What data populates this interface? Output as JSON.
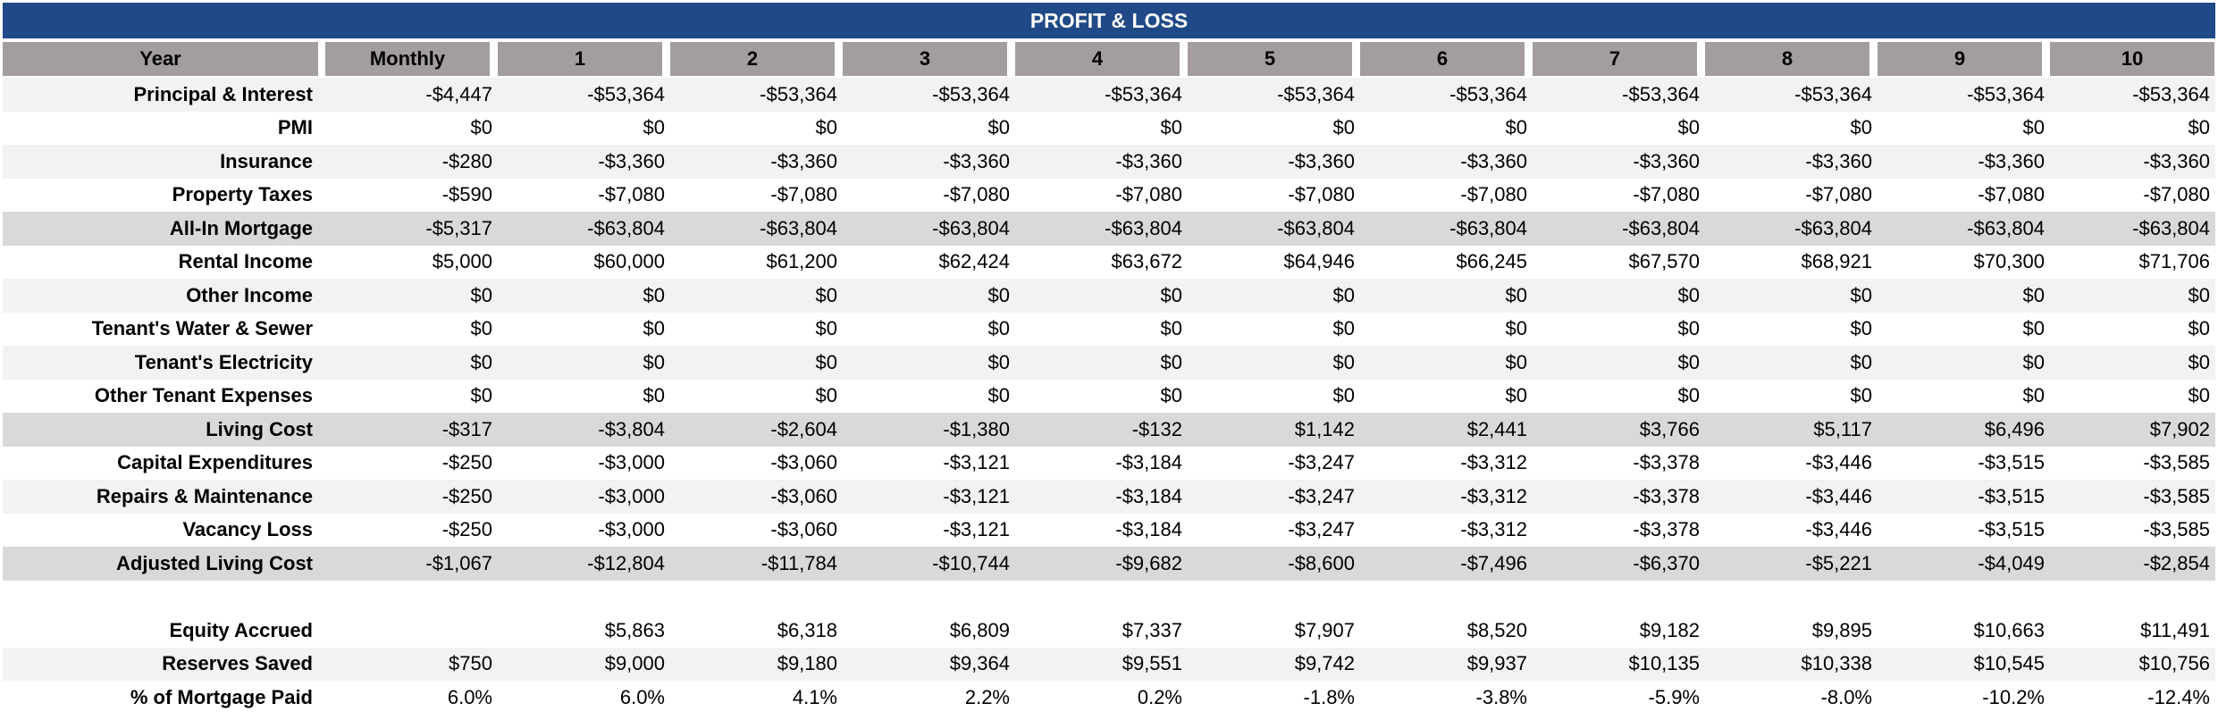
{
  "title": "PROFIT & LOSS",
  "table": {
    "header": [
      "Year",
      "Monthly",
      "1",
      "2",
      "3",
      "4",
      "5",
      "6",
      "7",
      "8",
      "9",
      "10"
    ],
    "rows": [
      [
        "Principal & Interest",
        "-$4,447",
        "-$53,364",
        "-$53,364",
        "-$53,364",
        "-$53,364",
        "-$53,364",
        "-$53,364",
        "-$53,364",
        "-$53,364",
        "-$53,364",
        "-$53,364"
      ],
      [
        "PMI",
        "$0",
        "$0",
        "$0",
        "$0",
        "$0",
        "$0",
        "$0",
        "$0",
        "$0",
        "$0",
        "$0"
      ],
      [
        "Insurance",
        "-$280",
        "-$3,360",
        "-$3,360",
        "-$3,360",
        "-$3,360",
        "-$3,360",
        "-$3,360",
        "-$3,360",
        "-$3,360",
        "-$3,360",
        "-$3,360"
      ],
      [
        "Property Taxes",
        "-$590",
        "-$7,080",
        "-$7,080",
        "-$7,080",
        "-$7,080",
        "-$7,080",
        "-$7,080",
        "-$7,080",
        "-$7,080",
        "-$7,080",
        "-$7,080"
      ],
      [
        "All-In Mortgage",
        "-$5,317",
        "-$63,804",
        "-$63,804",
        "-$63,804",
        "-$63,804",
        "-$63,804",
        "-$63,804",
        "-$63,804",
        "-$63,804",
        "-$63,804",
        "-$63,804"
      ],
      [
        "Rental Income",
        "$5,000",
        "$60,000",
        "$61,200",
        "$62,424",
        "$63,672",
        "$64,946",
        "$66,245",
        "$67,570",
        "$68,921",
        "$70,300",
        "$71,706"
      ],
      [
        "Other Income",
        "$0",
        "$0",
        "$0",
        "$0",
        "$0",
        "$0",
        "$0",
        "$0",
        "$0",
        "$0",
        "$0"
      ],
      [
        "Tenant's Water & Sewer",
        "$0",
        "$0",
        "$0",
        "$0",
        "$0",
        "$0",
        "$0",
        "$0",
        "$0",
        "$0",
        "$0"
      ],
      [
        "Tenant's Electricity",
        "$0",
        "$0",
        "$0",
        "$0",
        "$0",
        "$0",
        "$0",
        "$0",
        "$0",
        "$0",
        "$0"
      ],
      [
        "Other Tenant Expenses",
        "$0",
        "$0",
        "$0",
        "$0",
        "$0",
        "$0",
        "$0",
        "$0",
        "$0",
        "$0",
        "$0"
      ],
      [
        "Living Cost",
        "-$317",
        "-$3,804",
        "-$2,604",
        "-$1,380",
        "-$132",
        "$1,142",
        "$2,441",
        "$3,766",
        "$5,117",
        "$6,496",
        "$7,902"
      ],
      [
        "Capital Expenditures",
        "-$250",
        "-$3,000",
        "-$3,060",
        "-$3,121",
        "-$3,184",
        "-$3,247",
        "-$3,312",
        "-$3,378",
        "-$3,446",
        "-$3,515",
        "-$3,585"
      ],
      [
        "Repairs & Maintenance",
        "-$250",
        "-$3,000",
        "-$3,060",
        "-$3,121",
        "-$3,184",
        "-$3,247",
        "-$3,312",
        "-$3,378",
        "-$3,446",
        "-$3,515",
        "-$3,585"
      ],
      [
        "Vacancy Loss",
        "-$250",
        "-$3,000",
        "-$3,060",
        "-$3,121",
        "-$3,184",
        "-$3,247",
        "-$3,312",
        "-$3,378",
        "-$3,446",
        "-$3,515",
        "-$3,585"
      ],
      [
        "Adjusted Living Cost",
        "-$1,067",
        "-$12,804",
        "-$11,784",
        "-$10,744",
        "-$9,682",
        "-$8,600",
        "-$7,496",
        "-$6,370",
        "-$5,221",
        "-$4,049",
        "-$2,854"
      ],
      [
        "Equity Accrued",
        null,
        "$5,863",
        "$6,318",
        "$6,809",
        "$7,337",
        "$7,907",
        "$8,520",
        "$9,182",
        "$9,895",
        "$10,663",
        "$11,491"
      ],
      [
        "Reserves Saved",
        "$750",
        "$9,000",
        "$9,180",
        "$9,364",
        "$9,551",
        "$9,742",
        "$9,937",
        "$10,135",
        "$10,338",
        "$10,545",
        "$10,756"
      ],
      [
        "% of Mortgage Paid",
        "6.0%",
        "6.0%",
        "4.1%",
        "2.2%",
        "0.2%",
        "-1.8%",
        "-3.8%",
        "-5.9%",
        "-8.0%",
        "-10.2%",
        "-12.4%"
      ]
    ]
  }
}
